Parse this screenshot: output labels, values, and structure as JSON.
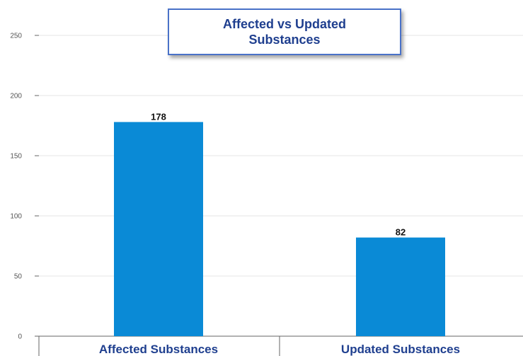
{
  "chart_data": {
    "type": "bar",
    "title": "Affected vs Updated Substances",
    "categories": [
      "Affected Substances",
      "Updated Substances"
    ],
    "values": [
      178,
      82
    ],
    "data_labels": [
      "178",
      "82"
    ],
    "yticks": [
      0,
      50,
      100,
      150,
      200,
      250
    ],
    "ylim": [
      0,
      250
    ],
    "xlabel": "",
    "ylabel": "",
    "grid": true,
    "legend": "none",
    "colors": {
      "bar": "#0a8ad6",
      "title_text": "#1f3f8f",
      "title_border": "#4a72c8",
      "grid": "#e4e4e4",
      "axis": "#666666"
    }
  }
}
